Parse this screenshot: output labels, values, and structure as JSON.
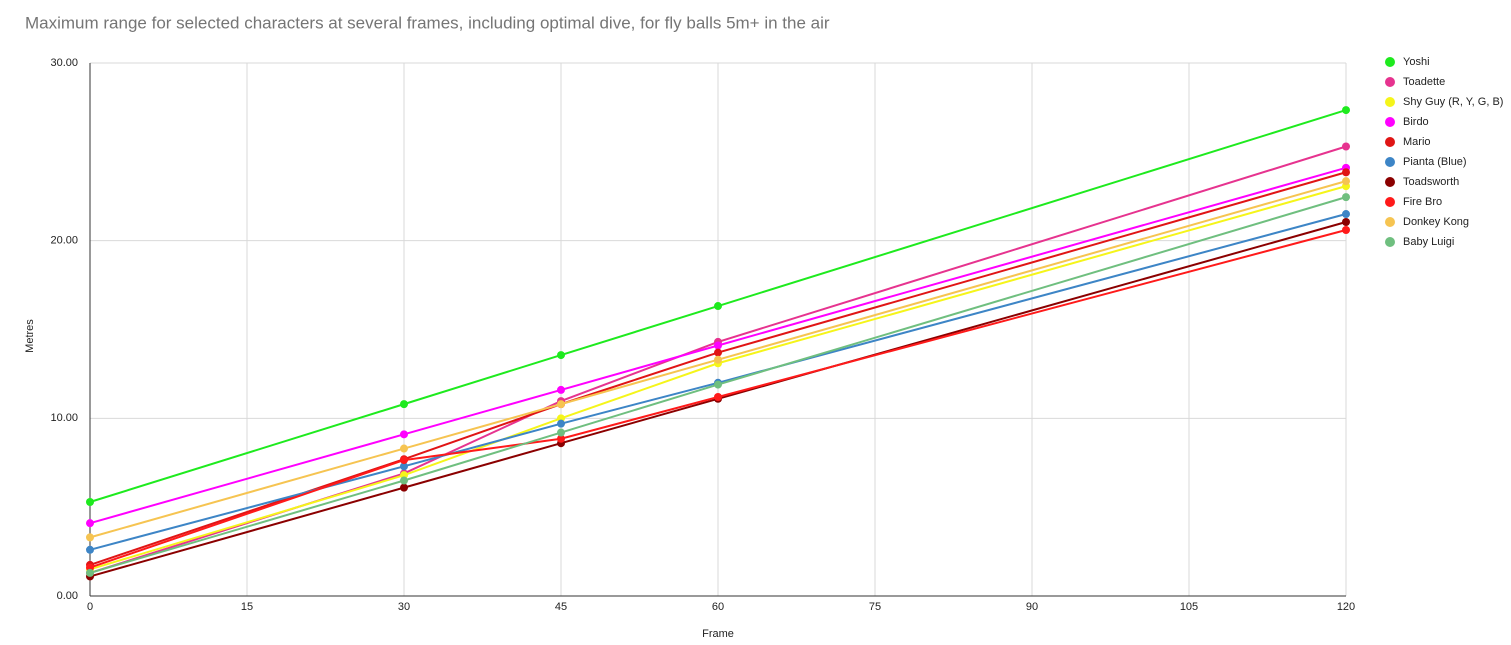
{
  "chart_data": {
    "type": "line",
    "title": "Maximum range for selected characters at several frames, including optimal dive, for fly balls 5m+ in the air",
    "x_label": "Frame",
    "y_label": "Metres",
    "x": [
      0,
      30,
      45,
      60,
      120
    ],
    "series": [
      {
        "name": "Yoshi",
        "color": "#1eea1e",
        "values": [
          5.29,
          10.8,
          13.56,
          16.32,
          27.35
        ]
      },
      {
        "name": "Toadette",
        "color": "#e6338f",
        "values": [
          1.3,
          6.9,
          10.97,
          14.3,
          25.3
        ]
      },
      {
        "name": "Shy Guy (R, Y, G, B)",
        "color": "#f5f51a",
        "values": [
          1.5,
          6.8,
          10.0,
          13.1,
          23.07
        ]
      },
      {
        "name": "Birdo",
        "color": "#ff00ff",
        "values": [
          4.1,
          9.1,
          11.6,
          14.1,
          24.1
        ]
      },
      {
        "name": "Mario",
        "color": "#e01515",
        "values": [
          1.75,
          7.7,
          10.8,
          13.7,
          23.85
        ]
      },
      {
        "name": "Pianta (Blue)",
        "color": "#3d85c6",
        "values": [
          2.6,
          7.3,
          9.7,
          12.0,
          21.5
        ]
      },
      {
        "name": "Toadsworth",
        "color": "#8b0000",
        "values": [
          1.1,
          6.1,
          8.6,
          11.1,
          21.05
        ]
      },
      {
        "name": "Fire Bro",
        "color": "#ff1a1a",
        "values": [
          1.6,
          7.65,
          8.85,
          11.2,
          20.6
        ]
      },
      {
        "name": "Donkey Kong",
        "color": "#f6c451",
        "values": [
          3.3,
          8.3,
          10.8,
          13.3,
          23.35
        ]
      },
      {
        "name": "Baby Luigi",
        "color": "#6fbf7f",
        "values": [
          1.3,
          6.5,
          9.2,
          11.9,
          22.45
        ]
      }
    ],
    "xlim": [
      0,
      120
    ],
    "xticks": [
      0,
      15,
      30,
      45,
      60,
      75,
      90,
      105,
      120
    ],
    "ylim": [
      0,
      30
    ],
    "yticks": [
      {
        "value": 0,
        "label": "0.00"
      },
      {
        "value": 10,
        "label": "10.00"
      },
      {
        "value": 20,
        "label": "20.00"
      },
      {
        "value": 30,
        "label": "30.00"
      }
    ],
    "grid": true,
    "legend": "right"
  }
}
